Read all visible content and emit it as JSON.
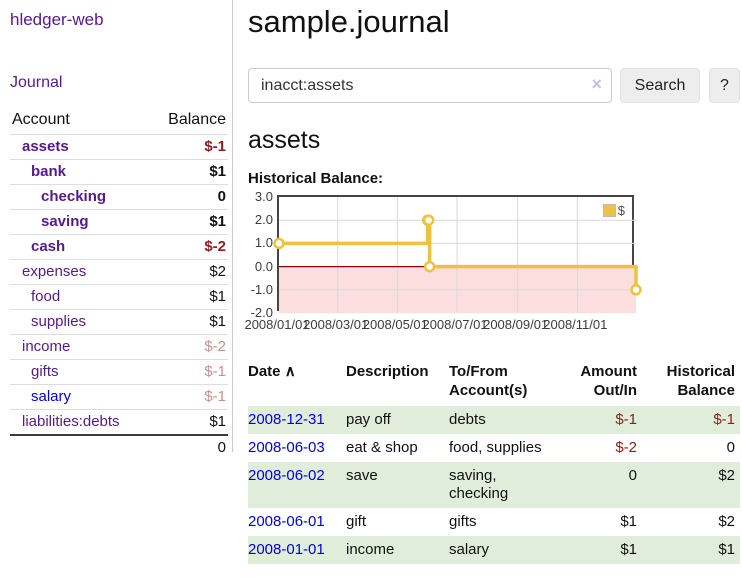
{
  "colors": {
    "accent_purple": "#551a8b",
    "link_blue": "#0000dd",
    "negative": "#8f1d1d",
    "negative_dim": "#c4908f",
    "row_green": "#e0edda",
    "chart_line": "#edc240",
    "chart_negative_bg": "#fcdede",
    "zero_line": "#8b0000"
  },
  "sidebar": {
    "app_title": "hledger-web",
    "nav": {
      "journal_label": "Journal"
    },
    "accounts_table": {
      "headers": {
        "account": "Account",
        "balance": "Balance"
      },
      "rows": [
        {
          "name": "assets",
          "balance": "$-1"
        },
        {
          "name": "bank",
          "balance": "$1"
        },
        {
          "name": "checking",
          "balance": "0"
        },
        {
          "name": "saving",
          "balance": "$1"
        },
        {
          "name": "cash",
          "balance": "$-2"
        },
        {
          "name": "expenses",
          "balance": "$2"
        },
        {
          "name": "food",
          "balance": "$1"
        },
        {
          "name": "supplies",
          "balance": "$1"
        },
        {
          "name": "income",
          "balance": "$-2"
        },
        {
          "name": "gifts",
          "balance": "$-1"
        },
        {
          "name": "salary",
          "balance": "$-1"
        },
        {
          "name": "liabilities:debts",
          "balance": "$1"
        }
      ],
      "total": "0"
    }
  },
  "main": {
    "title": "sample.journal",
    "search": {
      "value": "inacct:assets",
      "clear_icon": "×",
      "search_button": "Search",
      "help_button": "?"
    },
    "account_heading": "assets",
    "chart_label": "Historical Balance:",
    "register_table": {
      "headers": {
        "date": "Date",
        "sort_arrow": "∧",
        "description": "Description",
        "accounts": "To/From\nAccount(s)",
        "amount": "Amount\nOut/In",
        "balance": "Historical\nBalance"
      },
      "rows": [
        {
          "date": "2008-12-31",
          "description": "pay off",
          "accounts": "debts",
          "amount": "$-1",
          "balance": "$-1"
        },
        {
          "date": "2008-06-03",
          "description": "eat & shop",
          "accounts": "food, supplies",
          "amount": "$-2",
          "balance": "0"
        },
        {
          "date": "2008-06-02",
          "description": "save",
          "accounts": "saving,\nchecking",
          "amount": "0",
          "balance": "$2"
        },
        {
          "date": "2008-06-01",
          "description": "gift",
          "accounts": "gifts",
          "amount": "$1",
          "balance": "$2"
        },
        {
          "date": "2008-01-01",
          "description": "income",
          "accounts": "salary",
          "amount": "$1",
          "balance": "$1"
        }
      ]
    }
  },
  "chart_data": {
    "type": "line",
    "title": "Historical Balance:",
    "step": true,
    "series": [
      {
        "name": "$",
        "color": "#edc240",
        "points": [
          [
            "2008-01-01",
            1
          ],
          [
            "2008-06-01",
            2
          ],
          [
            "2008-06-02",
            2
          ],
          [
            "2008-06-03",
            0
          ],
          [
            "2008-12-31",
            -1
          ]
        ]
      }
    ],
    "x_ticks": [
      "2008/01/01",
      "2008/03/01",
      "2008/05/01",
      "2008/07/01",
      "2008/09/01",
      "2008/11/01"
    ],
    "y_ticks": [
      3.0,
      2.0,
      1.0,
      0.0,
      -1.0,
      -2.0
    ],
    "xlim": [
      "2008-01-01",
      "2008-12-31"
    ],
    "ylim": [
      -2,
      3
    ],
    "grid": true,
    "legend_position": "top-right",
    "negative_region_color": "#fcdede",
    "zero_line_color": "#8b0000"
  }
}
